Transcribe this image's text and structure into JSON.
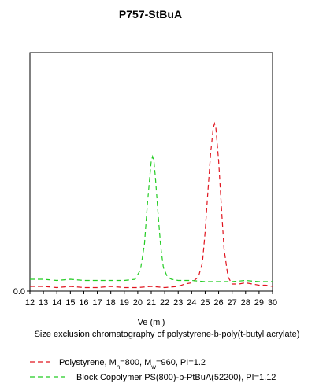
{
  "chart_data": {
    "type": "line",
    "title": "P757-StBuA",
    "xlabel": "Ve (ml)",
    "caption": "Size exclusion chromatography of  polystyrene-b-poly(t-butyl acrylate)",
    "xlim": [
      12,
      30
    ],
    "ylim": [
      0,
      1
    ],
    "x_ticks": [
      "12",
      "13",
      "14",
      "15",
      "16",
      "17",
      "18",
      "19",
      "20",
      "21",
      "22",
      "23",
      "24",
      "25",
      "26",
      "27",
      "28",
      "29",
      "30"
    ],
    "y_ticks": [
      "0.0"
    ],
    "grid": false,
    "legend_position": "bottom",
    "series": [
      {
        "name": "Polystyrene, Mn=800, Mw=960, PI=1.2",
        "legend": {
          "prefix": "Polystyrene, M",
          "sub1": "n",
          "mid": "=800, M",
          "sub2": "w",
          "suffix": "=960, PI=1.2"
        },
        "color": "#e0141e",
        "style": "dashed",
        "x": [
          12,
          13,
          14,
          15,
          16,
          17,
          18,
          19,
          20,
          21,
          22,
          23,
          23.5,
          24,
          24.5,
          24.8,
          25.0,
          25.2,
          25.4,
          25.6,
          25.7,
          25.8,
          26.0,
          26.2,
          26.4,
          26.7,
          27.0,
          27.5,
          28.0,
          28.5,
          29,
          29.5,
          30
        ],
        "y": [
          0.02,
          0.02,
          0.015,
          0.02,
          0.015,
          0.015,
          0.02,
          0.015,
          0.015,
          0.02,
          0.015,
          0.02,
          0.03,
          0.035,
          0.06,
          0.12,
          0.25,
          0.42,
          0.58,
          0.69,
          0.71,
          0.69,
          0.55,
          0.36,
          0.18,
          0.06,
          0.03,
          0.03,
          0.035,
          0.03,
          0.025,
          0.025,
          0.02
        ]
      },
      {
        "name": "Block Copolymer PS(800)-b-PtBuA(52200),  PI=1.12",
        "legend": {
          "prefix": "Block Copolymer PS(800)-b-PtBuA(52200),  PI=1.12"
        },
        "color": "#22cc22",
        "style": "dashed",
        "x": [
          12,
          13,
          14,
          15,
          16,
          17,
          18,
          19,
          19.8,
          20.2,
          20.5,
          20.7,
          20.9,
          21.0,
          21.1,
          21.2,
          21.3,
          21.5,
          21.7,
          21.9,
          22.2,
          22.5,
          23,
          24,
          25,
          26,
          27,
          28,
          29,
          30
        ],
        "y": [
          0.05,
          0.05,
          0.045,
          0.05,
          0.045,
          0.045,
          0.045,
          0.045,
          0.05,
          0.09,
          0.2,
          0.36,
          0.49,
          0.55,
          0.57,
          0.55,
          0.49,
          0.33,
          0.19,
          0.1,
          0.06,
          0.05,
          0.045,
          0.045,
          0.04,
          0.04,
          0.04,
          0.045,
          0.04,
          0.04
        ]
      }
    ]
  }
}
